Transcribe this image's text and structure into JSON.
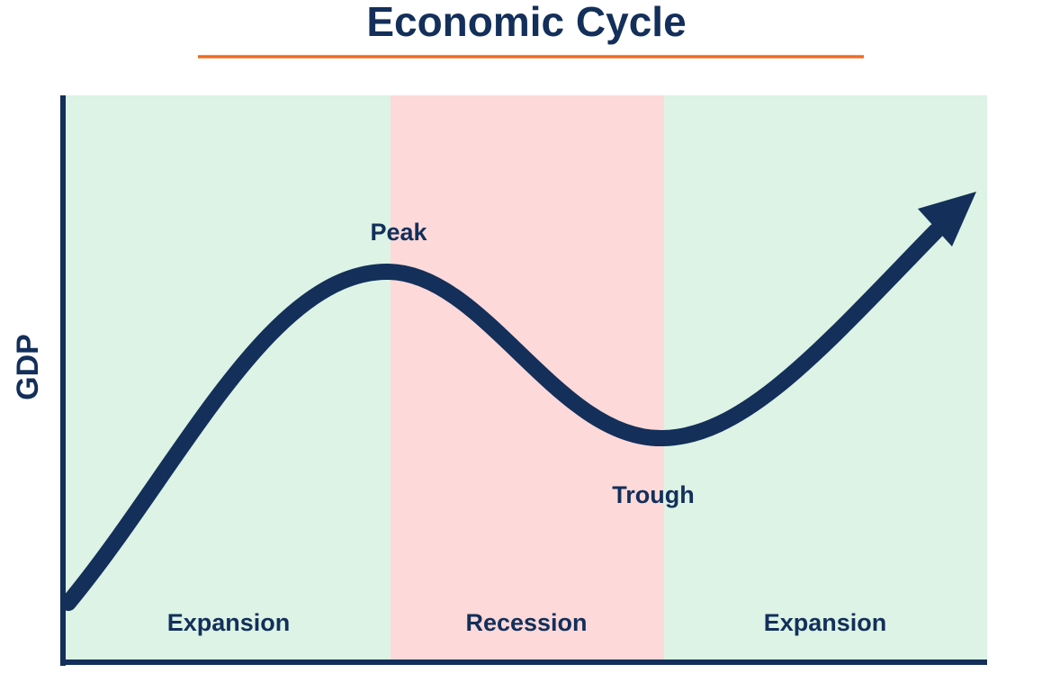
{
  "title": "Economic Cycle",
  "y_axis_label": "GDP",
  "phases": [
    "Expansion",
    "Recession",
    "Expansion"
  ],
  "points": {
    "peak": "Peak",
    "trough": "Trough"
  }
}
